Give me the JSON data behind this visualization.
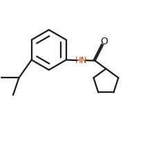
{
  "background": "#ffffff",
  "line_color": "#1a1a1a",
  "hn_color": "#cc3300",
  "bond_lw": 1.6,
  "figsize": [
    2.36,
    2.08
  ],
  "dpi": 100,
  "xlim": [
    -3.5,
    4.2
  ],
  "ylim": [
    -3.2,
    2.8
  ]
}
